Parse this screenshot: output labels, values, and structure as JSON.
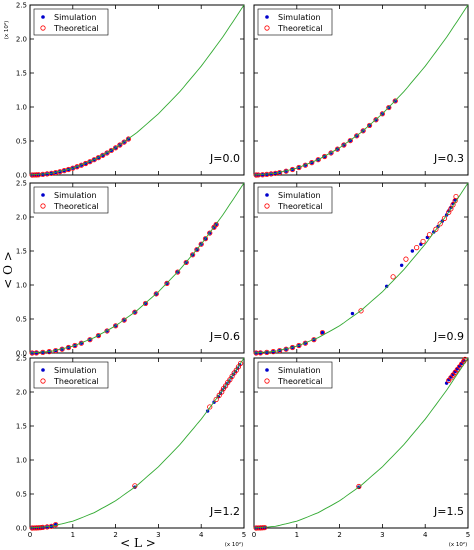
{
  "figure": {
    "ylabel": "< O >",
    "xlabel": "< L >",
    "x_scale_note": "(x 10²)",
    "y_scale_note": "(x 10²)"
  },
  "chart_data": [
    {
      "type": "scatter",
      "label": "J=0.0",
      "xlim": [
        0,
        5
      ],
      "ylim": [
        0,
        2.5
      ],
      "xticks": [
        "0",
        "1",
        "2",
        "3",
        "4",
        "5"
      ],
      "yticks": [
        "0.0",
        "0.5",
        "1.0",
        "1.5",
        "2.0",
        "2.5"
      ],
      "legend": {
        "placement": "top-left",
        "entries": [
          "Simulation",
          "Theoretical"
        ]
      },
      "series": [
        {
          "name": "Simulation",
          "marker": "filled-circle",
          "color": "#0000cc",
          "x": [
            0.05,
            0.1,
            0.15,
            0.2,
            0.3,
            0.4,
            0.5,
            0.6,
            0.7,
            0.8,
            0.9,
            1.0,
            1.1,
            1.2,
            1.3,
            1.4,
            1.5,
            1.6,
            1.7,
            1.8,
            1.9,
            2.0,
            2.1,
            2.2,
            2.3
          ],
          "y": [
            0.0002,
            0.001,
            0.002,
            0.004,
            0.009,
            0.016,
            0.025,
            0.036,
            0.049,
            0.064,
            0.081,
            0.1,
            0.121,
            0.144,
            0.169,
            0.196,
            0.225,
            0.256,
            0.289,
            0.324,
            0.361,
            0.4,
            0.441,
            0.484,
            0.529
          ]
        },
        {
          "name": "Theoretical",
          "marker": "open-circle",
          "color": "#ff0000",
          "x": [
            0.05,
            0.1,
            0.15,
            0.2,
            0.3,
            0.4,
            0.5,
            0.6,
            0.7,
            0.8,
            0.9,
            1.0,
            1.1,
            1.2,
            1.3,
            1.4,
            1.5,
            1.6,
            1.7,
            1.8,
            1.9,
            2.0,
            2.1,
            2.2,
            2.3
          ],
          "y": [
            0.0002,
            0.001,
            0.002,
            0.004,
            0.009,
            0.016,
            0.025,
            0.036,
            0.049,
            0.064,
            0.081,
            0.1,
            0.121,
            0.144,
            0.169,
            0.196,
            0.225,
            0.256,
            0.289,
            0.324,
            0.361,
            0.4,
            0.441,
            0.484,
            0.529
          ]
        },
        {
          "name": "Curve",
          "style": "line",
          "color": "#33aa33",
          "x": [
            0,
            0.5,
            1,
            1.5,
            2,
            2.5,
            3,
            3.5,
            4,
            4.5,
            5
          ],
          "y": [
            0,
            0.025,
            0.1,
            0.225,
            0.4,
            0.625,
            0.9,
            1.225,
            1.6,
            2.025,
            2.5
          ]
        }
      ]
    },
    {
      "type": "scatter",
      "label": "J=0.3",
      "xlim": [
        0,
        5
      ],
      "ylim": [
        0,
        2.5
      ],
      "xticks": [
        "0",
        "1",
        "2",
        "3",
        "4",
        "5"
      ],
      "yticks": [
        "0.0",
        "0.5",
        "1.0",
        "1.5",
        "2.0",
        "2.5"
      ],
      "legend": {
        "placement": "top-left",
        "entries": [
          "Simulation",
          "Theoretical"
        ]
      },
      "series": [
        {
          "name": "Simulation",
          "marker": "filled-circle",
          "color": "#0000cc",
          "x": [
            0.05,
            0.1,
            0.2,
            0.3,
            0.4,
            0.5,
            0.6,
            0.75,
            0.9,
            1.05,
            1.2,
            1.35,
            1.5,
            1.65,
            1.8,
            1.95,
            2.1,
            2.25,
            2.4,
            2.55,
            2.7,
            2.85,
            3.0,
            3.15,
            3.3
          ],
          "y": [
            0.0002,
            0.001,
            0.004,
            0.009,
            0.016,
            0.025,
            0.036,
            0.056,
            0.081,
            0.11,
            0.144,
            0.182,
            0.225,
            0.272,
            0.324,
            0.38,
            0.441,
            0.506,
            0.576,
            0.65,
            0.729,
            0.812,
            0.9,
            0.992,
            1.089
          ]
        },
        {
          "name": "Theoretical",
          "marker": "open-circle",
          "color": "#ff0000",
          "x": [
            0.05,
            0.1,
            0.2,
            0.3,
            0.4,
            0.5,
            0.6,
            0.75,
            0.9,
            1.05,
            1.2,
            1.35,
            1.5,
            1.65,
            1.8,
            1.95,
            2.1,
            2.25,
            2.4,
            2.55,
            2.7,
            2.85,
            3.0,
            3.15,
            3.3
          ],
          "y": [
            0.0002,
            0.001,
            0.004,
            0.009,
            0.016,
            0.025,
            0.036,
            0.056,
            0.081,
            0.11,
            0.144,
            0.182,
            0.225,
            0.272,
            0.324,
            0.38,
            0.441,
            0.506,
            0.576,
            0.65,
            0.729,
            0.812,
            0.9,
            0.992,
            1.089
          ]
        },
        {
          "name": "Curve",
          "style": "line",
          "color": "#33aa33",
          "x": [
            0,
            0.5,
            1,
            1.5,
            2,
            2.5,
            3,
            3.5,
            4,
            4.5,
            5
          ],
          "y": [
            0,
            0.025,
            0.1,
            0.225,
            0.4,
            0.625,
            0.9,
            1.225,
            1.6,
            2.025,
            2.5
          ]
        }
      ]
    },
    {
      "type": "scatter",
      "label": "J=0.6",
      "xlim": [
        0,
        5
      ],
      "ylim": [
        0,
        2.5
      ],
      "xticks": [
        "0",
        "1",
        "2",
        "3",
        "4",
        "5"
      ],
      "yticks": [
        "0.0",
        "0.5",
        "1.0",
        "1.5",
        "2.0",
        "2.5"
      ],
      "legend": {
        "placement": "top-left",
        "entries": [
          "Simulation",
          "Theoretical"
        ]
      },
      "series": [
        {
          "name": "Simulation",
          "marker": "filled-circle",
          "color": "#0000cc",
          "x": [
            0.05,
            0.15,
            0.3,
            0.45,
            0.6,
            0.75,
            0.9,
            1.05,
            1.2,
            1.4,
            1.6,
            1.8,
            2.0,
            2.2,
            2.45,
            2.7,
            2.95,
            3.2,
            3.45,
            3.65,
            3.8,
            3.9,
            4.0,
            4.1,
            4.2,
            4.3,
            4.35
          ],
          "y": [
            0.0002,
            0.002,
            0.009,
            0.02,
            0.036,
            0.056,
            0.081,
            0.11,
            0.144,
            0.196,
            0.256,
            0.324,
            0.4,
            0.484,
            0.6,
            0.729,
            0.87,
            1.024,
            1.19,
            1.332,
            1.444,
            1.521,
            1.6,
            1.681,
            1.764,
            1.849,
            1.89
          ]
        },
        {
          "name": "Theoretical",
          "marker": "open-circle",
          "color": "#ff0000",
          "x": [
            0.05,
            0.15,
            0.3,
            0.45,
            0.6,
            0.75,
            0.9,
            1.05,
            1.2,
            1.4,
            1.6,
            1.8,
            2.0,
            2.2,
            2.45,
            2.7,
            2.95,
            3.2,
            3.45,
            3.65,
            3.8,
            3.9,
            4.0,
            4.1,
            4.2,
            4.3,
            4.35
          ],
          "y": [
            0.0002,
            0.002,
            0.009,
            0.02,
            0.036,
            0.056,
            0.081,
            0.11,
            0.144,
            0.196,
            0.256,
            0.324,
            0.4,
            0.484,
            0.6,
            0.729,
            0.87,
            1.024,
            1.19,
            1.332,
            1.444,
            1.521,
            1.6,
            1.681,
            1.764,
            1.849,
            1.89
          ]
        },
        {
          "name": "Curve",
          "style": "line",
          "color": "#33aa33",
          "x": [
            0,
            0.5,
            1,
            1.5,
            2,
            2.5,
            3,
            3.5,
            4,
            4.5,
            5
          ],
          "y": [
            0,
            0.025,
            0.1,
            0.225,
            0.4,
            0.625,
            0.9,
            1.225,
            1.6,
            2.025,
            2.5
          ]
        }
      ]
    },
    {
      "type": "scatter",
      "label": "J=0.9",
      "xlim": [
        0,
        5
      ],
      "ylim": [
        0,
        2.5
      ],
      "xticks": [
        "0",
        "1",
        "2",
        "3",
        "4",
        "5"
      ],
      "yticks": [
        "0.0",
        "0.5",
        "1.0",
        "1.5",
        "2.0",
        "2.5"
      ],
      "legend": {
        "placement": "top-left",
        "entries": [
          "Simulation",
          "Theoretical"
        ]
      },
      "series": [
        {
          "name": "Simulation",
          "marker": "filled-circle",
          "color": "#0000cc",
          "x": [
            0.05,
            0.15,
            0.3,
            0.45,
            0.6,
            0.75,
            0.9,
            1.05,
            1.2,
            1.4,
            1.6,
            2.3,
            3.1,
            3.45,
            3.7,
            3.9,
            4.05,
            4.2,
            4.3,
            4.4,
            4.5,
            4.55,
            4.6,
            4.65,
            4.7
          ],
          "y": [
            0.0002,
            0.002,
            0.009,
            0.02,
            0.036,
            0.056,
            0.081,
            0.11,
            0.144,
            0.196,
            0.3,
            0.58,
            0.98,
            1.29,
            1.5,
            1.6,
            1.7,
            1.78,
            1.86,
            1.94,
            2.03,
            2.09,
            2.14,
            2.2,
            2.25
          ]
        },
        {
          "name": "Theoretical",
          "marker": "open-circle",
          "color": "#ff0000",
          "x": [
            0.05,
            0.15,
            0.3,
            0.45,
            0.6,
            0.75,
            0.9,
            1.05,
            1.2,
            1.4,
            1.6,
            2.5,
            3.25,
            3.55,
            3.8,
            3.95,
            4.1,
            4.25,
            4.35,
            4.45,
            4.55,
            4.6,
            4.65,
            4.7,
            4.72
          ],
          "y": [
            0.0002,
            0.002,
            0.009,
            0.02,
            0.036,
            0.056,
            0.081,
            0.11,
            0.144,
            0.196,
            0.3,
            0.62,
            1.12,
            1.38,
            1.55,
            1.64,
            1.74,
            1.82,
            1.9,
            1.98,
            2.07,
            2.12,
            2.18,
            2.24,
            2.3
          ]
        },
        {
          "name": "Curve",
          "style": "line",
          "color": "#33aa33",
          "x": [
            0,
            0.5,
            1,
            1.5,
            2,
            2.5,
            3,
            3.5,
            4,
            4.5,
            5
          ],
          "y": [
            0,
            0.025,
            0.1,
            0.225,
            0.4,
            0.625,
            0.9,
            1.225,
            1.6,
            2.025,
            2.5
          ]
        }
      ]
    },
    {
      "type": "scatter",
      "label": "J=1.2",
      "xlim": [
        0,
        5
      ],
      "ylim": [
        0,
        2.5
      ],
      "xticks": [
        "0",
        "1",
        "2",
        "3",
        "4",
        "5"
      ],
      "yticks": [
        "0.0",
        "0.5",
        "1.0",
        "1.5",
        "2.0",
        "2.5"
      ],
      "legend": {
        "placement": "top-left",
        "entries": [
          "Simulation",
          "Theoretical"
        ]
      },
      "series": [
        {
          "name": "Simulation",
          "marker": "filled-circle",
          "color": "#0000cc",
          "x": [
            0.05,
            0.1,
            0.15,
            0.2,
            0.25,
            0.3,
            0.4,
            0.5,
            0.6,
            2.45,
            4.15,
            4.3,
            4.4,
            4.45,
            4.5,
            4.55,
            4.6,
            4.65,
            4.7,
            4.75,
            4.8,
            4.85,
            4.9
          ],
          "y": [
            0.0002,
            0.001,
            0.002,
            0.004,
            0.006,
            0.009,
            0.016,
            0.025,
            0.05,
            0.6,
            1.72,
            1.85,
            1.93,
            1.98,
            2.03,
            2.07,
            2.12,
            2.16,
            2.21,
            2.26,
            2.3,
            2.35,
            2.4
          ]
        },
        {
          "name": "Theoretical",
          "marker": "open-circle",
          "color": "#ff0000",
          "x": [
            0.05,
            0.1,
            0.15,
            0.2,
            0.25,
            0.3,
            0.4,
            0.5,
            0.6,
            2.45,
            4.2,
            4.35,
            4.42,
            4.48,
            4.52,
            4.57,
            4.62,
            4.67,
            4.72,
            4.77,
            4.82,
            4.87,
            4.92
          ],
          "y": [
            0.0002,
            0.001,
            0.002,
            0.004,
            0.006,
            0.009,
            0.016,
            0.025,
            0.05,
            0.62,
            1.78,
            1.89,
            1.95,
            2.0,
            2.05,
            2.09,
            2.14,
            2.18,
            2.23,
            2.28,
            2.32,
            2.37,
            2.42
          ]
        },
        {
          "name": "Curve",
          "style": "line",
          "color": "#33aa33",
          "x": [
            0,
            0.5,
            1,
            1.5,
            2,
            2.5,
            3,
            3.5,
            4,
            4.5,
            5
          ],
          "y": [
            0,
            0.025,
            0.1,
            0.225,
            0.4,
            0.625,
            0.9,
            1.225,
            1.6,
            2.025,
            2.5
          ]
        }
      ]
    },
    {
      "type": "scatter",
      "label": "J=1.5",
      "xlim": [
        0,
        5
      ],
      "ylim": [
        0,
        2.5
      ],
      "xticks": [
        "0",
        "1",
        "2",
        "3",
        "4",
        "5"
      ],
      "yticks": [
        "0.0",
        "0.5",
        "1.0",
        "1.5",
        "2.0",
        "2.5"
      ],
      "legend": {
        "placement": "top-left",
        "entries": [
          "Simulation",
          "Theoretical"
        ]
      },
      "series": [
        {
          "name": "Simulation",
          "marker": "filled-circle",
          "color": "#0000cc",
          "x": [
            0.05,
            0.1,
            0.15,
            0.2,
            0.25,
            2.45,
            4.5,
            4.55,
            4.6,
            4.65,
            4.7,
            4.75,
            4.8,
            4.85,
            4.9
          ],
          "y": [
            0.0002,
            0.001,
            0.002,
            0.004,
            0.006,
            0.6,
            2.13,
            2.18,
            2.22,
            2.26,
            2.3,
            2.34,
            2.38,
            2.42,
            2.46
          ]
        },
        {
          "name": "Theoretical",
          "marker": "open-circle",
          "color": "#ff0000",
          "x": [
            0.05,
            0.1,
            0.15,
            0.2,
            0.25,
            2.45,
            4.55,
            4.6,
            4.65,
            4.7,
            4.75,
            4.8,
            4.85,
            4.9,
            4.93
          ],
          "y": [
            0.0002,
            0.001,
            0.002,
            0.004,
            0.006,
            0.61,
            2.17,
            2.21,
            2.25,
            2.29,
            2.33,
            2.37,
            2.41,
            2.45,
            2.48
          ]
        },
        {
          "name": "Curve",
          "style": "line",
          "color": "#33aa33",
          "x": [
            0,
            0.5,
            1,
            1.5,
            2,
            2.5,
            3,
            3.5,
            4,
            4.5,
            5
          ],
          "y": [
            0,
            0.025,
            0.1,
            0.225,
            0.4,
            0.625,
            0.9,
            1.225,
            1.6,
            2.025,
            2.5
          ]
        }
      ]
    }
  ]
}
